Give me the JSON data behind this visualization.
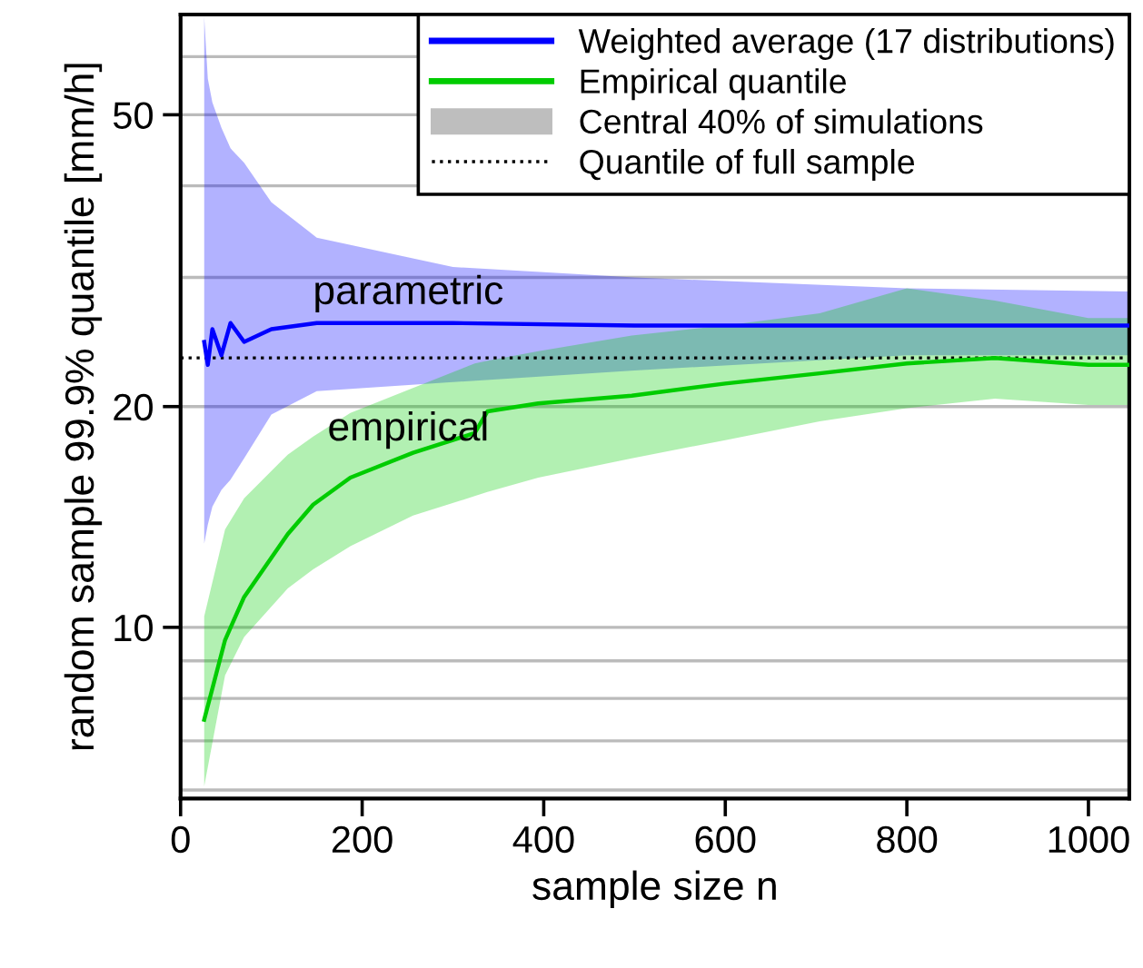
{
  "chart_data": {
    "type": "line",
    "xlabel": "sample size n",
    "ylabel": "random sample 99.9% quantile [mm/h]",
    "log": "y",
    "xlim": [
      0,
      1045
    ],
    "xticks": [
      0,
      200,
      400,
      600,
      800,
      1000
    ],
    "ylim": [
      5.84,
      68.5
    ],
    "yticks": [
      {
        "value": 6,
        "label": null
      },
      {
        "value": 7,
        "label": null
      },
      {
        "value": 8,
        "label": null
      },
      {
        "value": 9,
        "label": null
      },
      10,
      20,
      {
        "value": 30,
        "label": null
      },
      {
        "value": 40,
        "label": null
      },
      50,
      {
        "value": 60,
        "label": null
      }
    ],
    "grid": "y",
    "legend": "top right",
    "line_style": "solid",
    "marker": "none",
    "series": [
      {
        "name": "Weighted average (17 distributions)",
        "color": "#0000ff",
        "x": [
          26,
          30,
          35,
          45,
          55,
          70,
          100,
          150,
          300,
          500,
          800,
          1045
        ],
        "values": [
          24.5,
          22.8,
          25.5,
          23.5,
          26,
          24.5,
          25.5,
          26,
          26,
          25.8,
          25.8,
          25.8
        ],
        "lower": [
          13.0,
          13.8,
          14.6,
          15.4,
          15.9,
          17.0,
          19.5,
          21.0,
          21.6,
          22.4,
          23.5,
          23.5
        ],
        "upper": [
          68,
          56,
          52,
          48,
          45,
          43,
          38,
          34,
          31,
          30,
          29,
          28.7
        ]
      },
      {
        "name": "Empirical quantile",
        "color": "#00cc00",
        "x": [
          26,
          49,
          70,
          118,
          146,
          187,
          256,
          324,
          338,
          394,
          497,
          600,
          704,
          800,
          897,
          1000,
          1045
        ],
        "values": [
          7.48,
          9.61,
          11.0,
          13.4,
          14.7,
          16.0,
          17.3,
          18.4,
          19.7,
          20.2,
          20.7,
          21.5,
          22.2,
          22.9,
          23.3,
          22.8,
          22.8
        ],
        "lower": [
          6.07,
          8.6,
          9.7,
          11.3,
          12.0,
          12.9,
          14.2,
          15.1,
          15.3,
          16.0,
          17.0,
          18.0,
          19.1,
          19.9,
          20.5,
          20.1,
          20.1
        ],
        "upper": [
          10.35,
          13.6,
          15.0,
          17.2,
          18.2,
          19.6,
          21.2,
          22.9,
          23.1,
          23.8,
          25.0,
          25.8,
          26.8,
          29,
          27.9,
          26.4,
          26.4
        ]
      }
    ],
    "ref_lines": [
      {
        "axis": "y",
        "value": 23.3,
        "label": "Quantile of full sample",
        "line_style": "dotted",
        "color": "#000000"
      }
    ],
    "annotations": [
      "parametric",
      "empirical",
      "Central 40% of simulations"
    ]
  }
}
